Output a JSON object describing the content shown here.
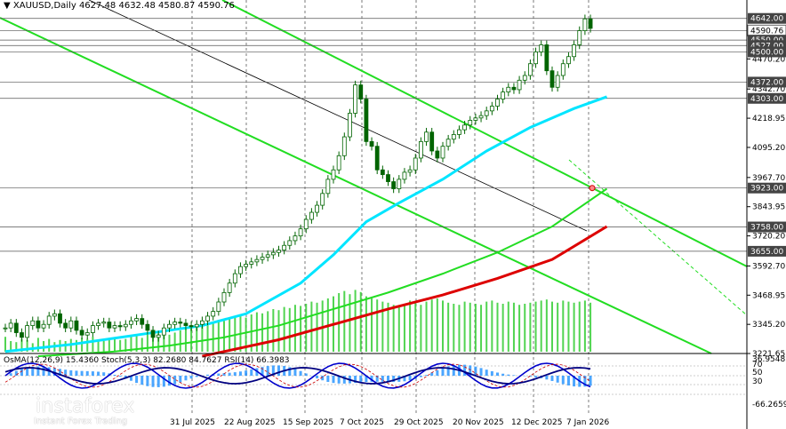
{
  "header": {
    "symbol": "XAUUSD,Daily",
    "ohlc": "4627.48 4632.48 4580.87 4590.76"
  },
  "oscillators": {
    "label": "OsMA(12,26,9) 15.4360  Stoch(5,3,3) 82.2680 84.7627  RSI(14) 66.3983"
  },
  "watermark": {
    "brand": "instaforex",
    "tagline": "Instant Forex Trading"
  },
  "colors": {
    "background": "#ffffff",
    "candle": "#006400",
    "ma_cyan": "#00e5ff",
    "ma_green": "#22dd22",
    "ma_red": "#dd0000",
    "channel": "#22dd22",
    "trendline": "#000000",
    "volume": "#33cc33",
    "osma": "#1e90ff",
    "stoch": "#0000cc",
    "rsi": "#cc0000"
  },
  "chart_data": {
    "type": "candlestick",
    "title": "XAUUSD,Daily",
    "price_ylim": [
      3221.65,
      4720
    ],
    "x_tick_labels": [
      "31 Jul 2025",
      "22 Aug 2025",
      "15 Sep 2025",
      "7 Oct 2025",
      "29 Oct 2025",
      "20 Nov 2025",
      "12 Dec 2025",
      "7 Jan 2026"
    ],
    "y_tick_labels": [
      "4642.00",
      "4590.76",
      "4550.00",
      "4527.00",
      "4500.00",
      "4470.20",
      "4372.00",
      "4342.70",
      "4303.00",
      "4218.95",
      "4095.20",
      "3967.70",
      "3923.00",
      "3843.95",
      "3758.00",
      "3720.20",
      "3655.00",
      "3592.70",
      "3468.95",
      "3345.20",
      "3221.65"
    ],
    "level_labels": [
      {
        "label": "4642.00",
        "value": 4642.0,
        "style": "dark"
      },
      {
        "label": "4590.76",
        "value": 4590.76,
        "style": "light"
      },
      {
        "label": "4550.00",
        "value": 4550.0,
        "style": "dark"
      },
      {
        "label": "4527.00",
        "value": 4527.0,
        "style": "dark"
      },
      {
        "label": "4500.00",
        "value": 4500.0,
        "style": "dark"
      },
      {
        "label": "4372.00",
        "value": 4372.0,
        "style": "dark"
      },
      {
        "label": "4303.00",
        "value": 4303.0,
        "style": "dark"
      },
      {
        "label": "3923.00",
        "value": 3923.0,
        "style": "dark"
      },
      {
        "label": "3758.00",
        "value": 3758.0,
        "style": "dark"
      },
      {
        "label": "3655.00",
        "value": 3655.0,
        "style": "dark"
      }
    ],
    "series": [
      {
        "name": "XAUUSD,Daily",
        "points": [
          [
            0,
            3330
          ],
          [
            1,
            3350
          ],
          [
            2,
            3310
          ],
          [
            3,
            3290
          ],
          [
            4,
            3340
          ],
          [
            5,
            3360
          ],
          [
            6,
            3330
          ],
          [
            7,
            3345
          ],
          [
            8,
            3380
          ],
          [
            9,
            3390
          ],
          [
            10,
            3350
          ],
          [
            11,
            3330
          ],
          [
            12,
            3360
          ],
          [
            13,
            3320
          ],
          [
            14,
            3300
          ],
          [
            15,
            3310
          ],
          [
            16,
            3340
          ],
          [
            17,
            3350
          ],
          [
            18,
            3355
          ],
          [
            19,
            3330
          ],
          [
            20,
            3340
          ],
          [
            21,
            3335
          ],
          [
            22,
            3345
          ],
          [
            23,
            3360
          ],
          [
            24,
            3370
          ],
          [
            25,
            3345
          ],
          [
            26,
            3320
          ],
          [
            27,
            3290
          ],
          [
            28,
            3300
          ],
          [
            29,
            3330
          ],
          [
            30,
            3345
          ],
          [
            31,
            3355
          ],
          [
            32,
            3350
          ],
          [
            33,
            3340
          ],
          [
            34,
            3335
          ],
          [
            35,
            3345
          ],
          [
            36,
            3360
          ],
          [
            37,
            3380
          ],
          [
            38,
            3400
          ],
          [
            39,
            3440
          ],
          [
            40,
            3480
          ],
          [
            41,
            3520
          ],
          [
            42,
            3560
          ],
          [
            43,
            3590
          ],
          [
            44,
            3600
          ],
          [
            45,
            3610
          ],
          [
            46,
            3620
          ],
          [
            47,
            3630
          ],
          [
            48,
            3640
          ],
          [
            49,
            3650
          ],
          [
            50,
            3660
          ],
          [
            51,
            3680
          ],
          [
            52,
            3700
          ],
          [
            53,
            3720
          ],
          [
            54,
            3750
          ],
          [
            55,
            3790
          ],
          [
            56,
            3820
          ],
          [
            57,
            3850
          ],
          [
            58,
            3900
          ],
          [
            59,
            3960
          ],
          [
            60,
            4000
          ],
          [
            61,
            4060
          ],
          [
            62,
            4140
          ],
          [
            63,
            4240
          ],
          [
            64,
            4360
          ],
          [
            65,
            4300
          ],
          [
            66,
            4120
          ],
          [
            67,
            4100
          ],
          [
            68,
            4000
          ],
          [
            69,
            3980
          ],
          [
            70,
            3950
          ],
          [
            71,
            3920
          ],
          [
            72,
            3960
          ],
          [
            73,
            3990
          ],
          [
            74,
            4000
          ],
          [
            75,
            4050
          ],
          [
            76,
            4120
          ],
          [
            77,
            4160
          ],
          [
            78,
            4080
          ],
          [
            79,
            4050
          ],
          [
            80,
            4100
          ],
          [
            81,
            4130
          ],
          [
            82,
            4150
          ],
          [
            83,
            4170
          ],
          [
            84,
            4190
          ],
          [
            85,
            4210
          ],
          [
            86,
            4220
          ],
          [
            87,
            4230
          ],
          [
            88,
            4250
          ],
          [
            89,
            4270
          ],
          [
            90,
            4300
          ],
          [
            91,
            4330
          ],
          [
            92,
            4350
          ],
          [
            93,
            4340
          ],
          [
            94,
            4380
          ],
          [
            95,
            4400
          ],
          [
            96,
            4450
          ],
          [
            97,
            4500
          ],
          [
            98,
            4530
          ],
          [
            99,
            4420
          ],
          [
            100,
            4350
          ],
          [
            101,
            4400
          ],
          [
            102,
            4450
          ],
          [
            103,
            4480
          ],
          [
            104,
            4530
          ],
          [
            105,
            4590
          ],
          [
            106,
            4640
          ],
          [
            107,
            4600
          ]
        ]
      },
      {
        "name": "",
        "points": [
          [
            0,
            3230
          ],
          [
            12,
            3260
          ],
          [
            24,
            3300
          ],
          [
            36,
            3340
          ],
          [
            44,
            3390
          ],
          [
            54,
            3520
          ],
          [
            60,
            3640
          ],
          [
            66,
            3780
          ],
          [
            72,
            3860
          ],
          [
            80,
            3960
          ],
          [
            88,
            4080
          ],
          [
            96,
            4180
          ],
          [
            104,
            4260
          ],
          [
            110,
            4310
          ]
        ]
      },
      {
        "name": "",
        "points": [
          [
            6,
            3210
          ],
          [
            20,
            3230
          ],
          [
            30,
            3255
          ],
          [
            40,
            3290
          ],
          [
            50,
            3340
          ],
          [
            60,
            3410
          ],
          [
            70,
            3480
          ],
          [
            80,
            3560
          ],
          [
            90,
            3650
          ],
          [
            100,
            3760
          ],
          [
            110,
            3920
          ]
        ]
      },
      {
        "name": "",
        "points": [
          [
            36,
            3210
          ],
          [
            50,
            3280
          ],
          [
            60,
            3345
          ],
          [
            70,
            3410
          ],
          [
            80,
            3470
          ],
          [
            90,
            3540
          ],
          [
            100,
            3620
          ],
          [
            110,
            3760
          ]
        ]
      }
    ],
    "volume": [
      14,
      10,
      9,
      12,
      11,
      8,
      13,
      10,
      12,
      9,
      11,
      10,
      12,
      11,
      13,
      12,
      14,
      11,
      10,
      12,
      13,
      11,
      12,
      14,
      15,
      13,
      16,
      18,
      17,
      15,
      16,
      18,
      20,
      22,
      24,
      23,
      25,
      26,
      28,
      30,
      29,
      31,
      33,
      34,
      32,
      35,
      37,
      36,
      38,
      40,
      39,
      42,
      41,
      44,
      43,
      45,
      47,
      46,
      48,
      50,
      52,
      55,
      57,
      54,
      58,
      56,
      52,
      50,
      49,
      47,
      46,
      44,
      42,
      45,
      48,
      46,
      44,
      47,
      49,
      50,
      48,
      46,
      45,
      44,
      47,
      46,
      45,
      44,
      47,
      48,
      46,
      45,
      47,
      46,
      44,
      45,
      46,
      47,
      48,
      49,
      47,
      46,
      48,
      47,
      46,
      47,
      48,
      46
    ]
  }
}
